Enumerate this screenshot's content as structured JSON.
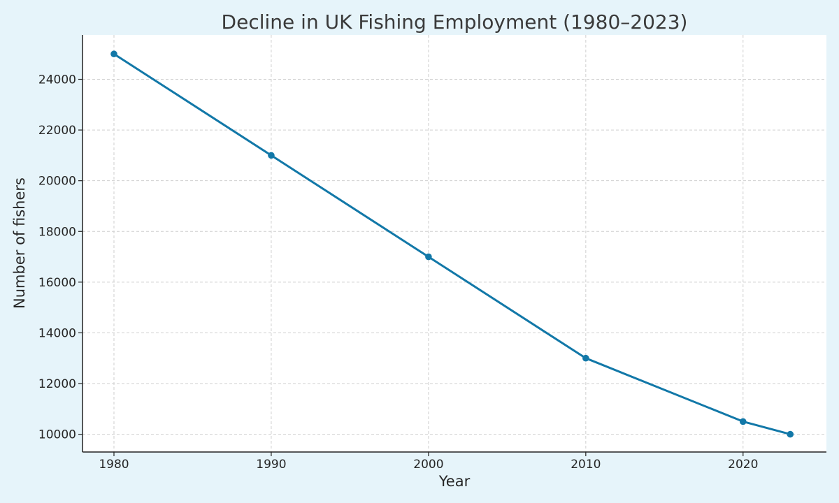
{
  "chart_data": {
    "type": "line",
    "title": "Decline in UK Fishing Employment (1980–2023)",
    "xlabel": "Year",
    "ylabel": "Number of fishers",
    "x": [
      1980,
      1990,
      2000,
      2010,
      2020,
      2023
    ],
    "series": [
      {
        "values": [
          25000,
          21000,
          17000,
          13000,
          10500,
          10000
        ]
      }
    ],
    "xlim": [
      1978,
      2025.3
    ],
    "ylim": [
      9300,
      25750
    ],
    "x_ticks": [
      1980,
      1990,
      2000,
      2010,
      2020
    ],
    "y_ticks": [
      10000,
      12000,
      14000,
      16000,
      18000,
      20000,
      22000,
      24000
    ],
    "grid": true,
    "marker": "circle",
    "colors": {
      "series": "#1278a8",
      "page_background": "#e6f4fa",
      "plot_background": "#ffffff"
    }
  }
}
